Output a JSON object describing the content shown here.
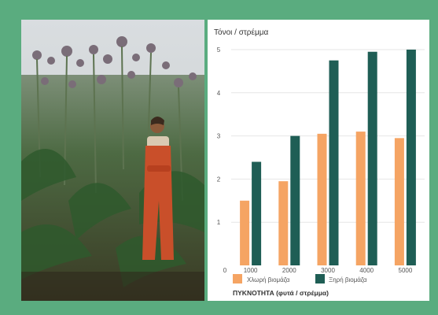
{
  "chart_data": {
    "type": "bar",
    "ylabel": "Τόνοι / στρέμμα",
    "xlabel": "ΠΥΚΝΟΤΗΤΑ (φυτά / στρέμμα)",
    "x_origin_label": "0",
    "categories": [
      "1000",
      "2000",
      "3000",
      "4000",
      "5000"
    ],
    "ylim": [
      0,
      5
    ],
    "yticks": [
      1,
      2,
      3,
      4,
      5
    ],
    "series": [
      {
        "name": "Χλωρή βιομάζα",
        "color": "#f5a463",
        "values": [
          1.5,
          1.95,
          3.05,
          3.1,
          2.95
        ]
      },
      {
        "name": "Ξηρή βιομάζα",
        "color": "#1f5e55",
        "values": [
          2.4,
          3.0,
          4.75,
          4.95,
          5.0
        ]
      }
    ],
    "grid": true,
    "legend_position": "bottom"
  },
  "photo": {
    "description_icon": "person-in-cardoon-field-photo"
  }
}
